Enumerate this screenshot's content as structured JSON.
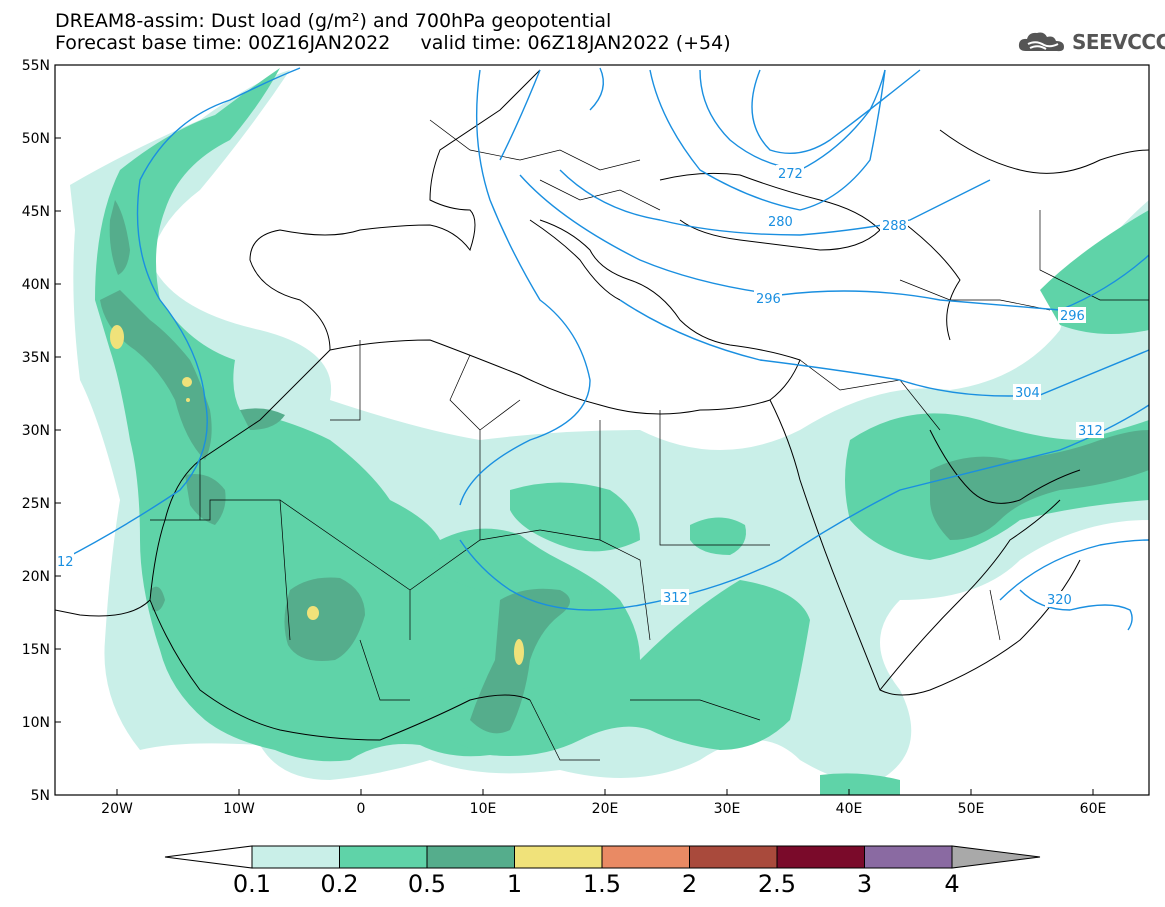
{
  "header": {
    "title_line1": "DREAM8-assim: Dust load (g/m²) and 700hPa geopotential",
    "title_line2": "Forecast base time: 00Z16JAN2022     valid time: 06Z18JAN2022 (+54)"
  },
  "logo": {
    "text": "SEEVCCC",
    "icon": "cloud-logo-icon"
  },
  "map": {
    "lon_ticks": [
      "20W",
      "10W",
      "0",
      "10E",
      "20E",
      "30E",
      "40E",
      "50E",
      "60E"
    ],
    "lat_ticks": [
      "55N",
      "50N",
      "45N",
      "40N",
      "35N",
      "30N",
      "25N",
      "20N",
      "15N",
      "10N",
      "5N"
    ],
    "geopotential_labels": [
      "272",
      "280",
      "288",
      "296",
      "296",
      "304",
      "312",
      "312",
      "320",
      "12"
    ],
    "colors": {
      "contour": "#1a8fe0",
      "dust_0_1": "#c9efe8",
      "dust_0_2": "#5fd3a8",
      "dust_0_5": "#55ad8c",
      "dust_1": "#f0e27a",
      "coast": "#000000"
    }
  },
  "colorbar": {
    "labels": [
      "0.1",
      "0.2",
      "0.5",
      "1",
      "1.5",
      "2",
      "2.5",
      "3",
      "4"
    ],
    "colors": [
      "#c9efe8",
      "#5fd3a8",
      "#55ad8c",
      "#f0e27a",
      "#e98a64",
      "#a94a3c",
      "#7a0a2a",
      "#8a6aa2"
    ]
  }
}
